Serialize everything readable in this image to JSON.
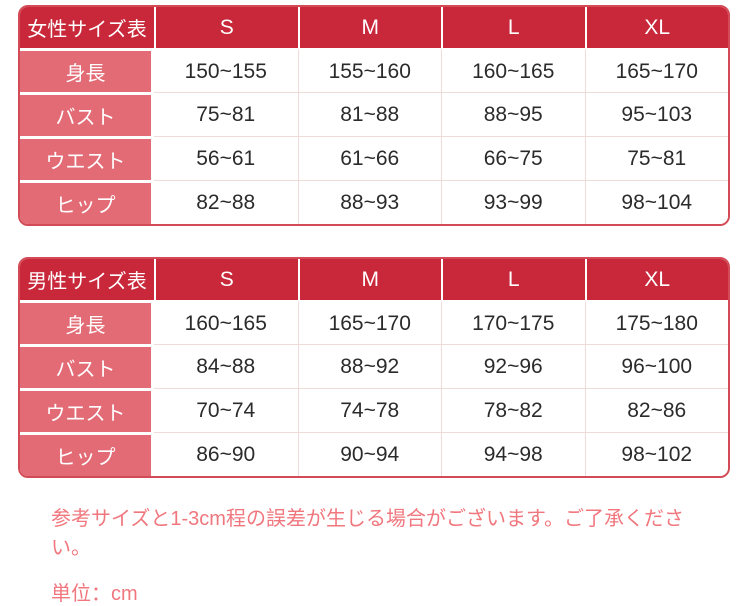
{
  "colors": {
    "header_bg": "#c8283a",
    "row_label_bg": "#e26b75",
    "table_border": "#d24b56",
    "grid_line": "#efdcda",
    "value_text": "#2b2b2b",
    "header_text": "#ffffff",
    "note_text": "#f0777e",
    "page_bg": "#ffffff"
  },
  "chart_data": [
    {
      "type": "table",
      "title": "女性サイズ表",
      "columns": [
        "S",
        "M",
        "L",
        "XL"
      ],
      "rows": [
        {
          "label": "身長",
          "values": [
            "150~155",
            "155~160",
            "160~165",
            "165~170"
          ]
        },
        {
          "label": "バスト",
          "values": [
            "75~81",
            "81~88",
            "88~95",
            "95~103"
          ]
        },
        {
          "label": "ウエスト",
          "values": [
            "56~61",
            "61~66",
            "66~75",
            "75~81"
          ]
        },
        {
          "label": "ヒップ",
          "values": [
            "82~88",
            "88~93",
            "93~99",
            "98~104"
          ]
        }
      ]
    },
    {
      "type": "table",
      "title": "男性サイズ表",
      "columns": [
        "S",
        "M",
        "L",
        "XL"
      ],
      "rows": [
        {
          "label": "身長",
          "values": [
            "160~165",
            "165~170",
            "170~175",
            "175~180"
          ]
        },
        {
          "label": "バスト",
          "values": [
            "84~88",
            "88~92",
            "92~96",
            "96~100"
          ]
        },
        {
          "label": "ウエスト",
          "values": [
            "70~74",
            "74~78",
            "78~82",
            "82~86"
          ]
        },
        {
          "label": "ヒップ",
          "values": [
            "86~90",
            "90~94",
            "94~98",
            "98~102"
          ]
        }
      ]
    }
  ],
  "notes": {
    "line1": "参考サイズと1-3cm程の誤差が生じる場合がございます。ご了承ください。",
    "line2": "単位：cm"
  }
}
